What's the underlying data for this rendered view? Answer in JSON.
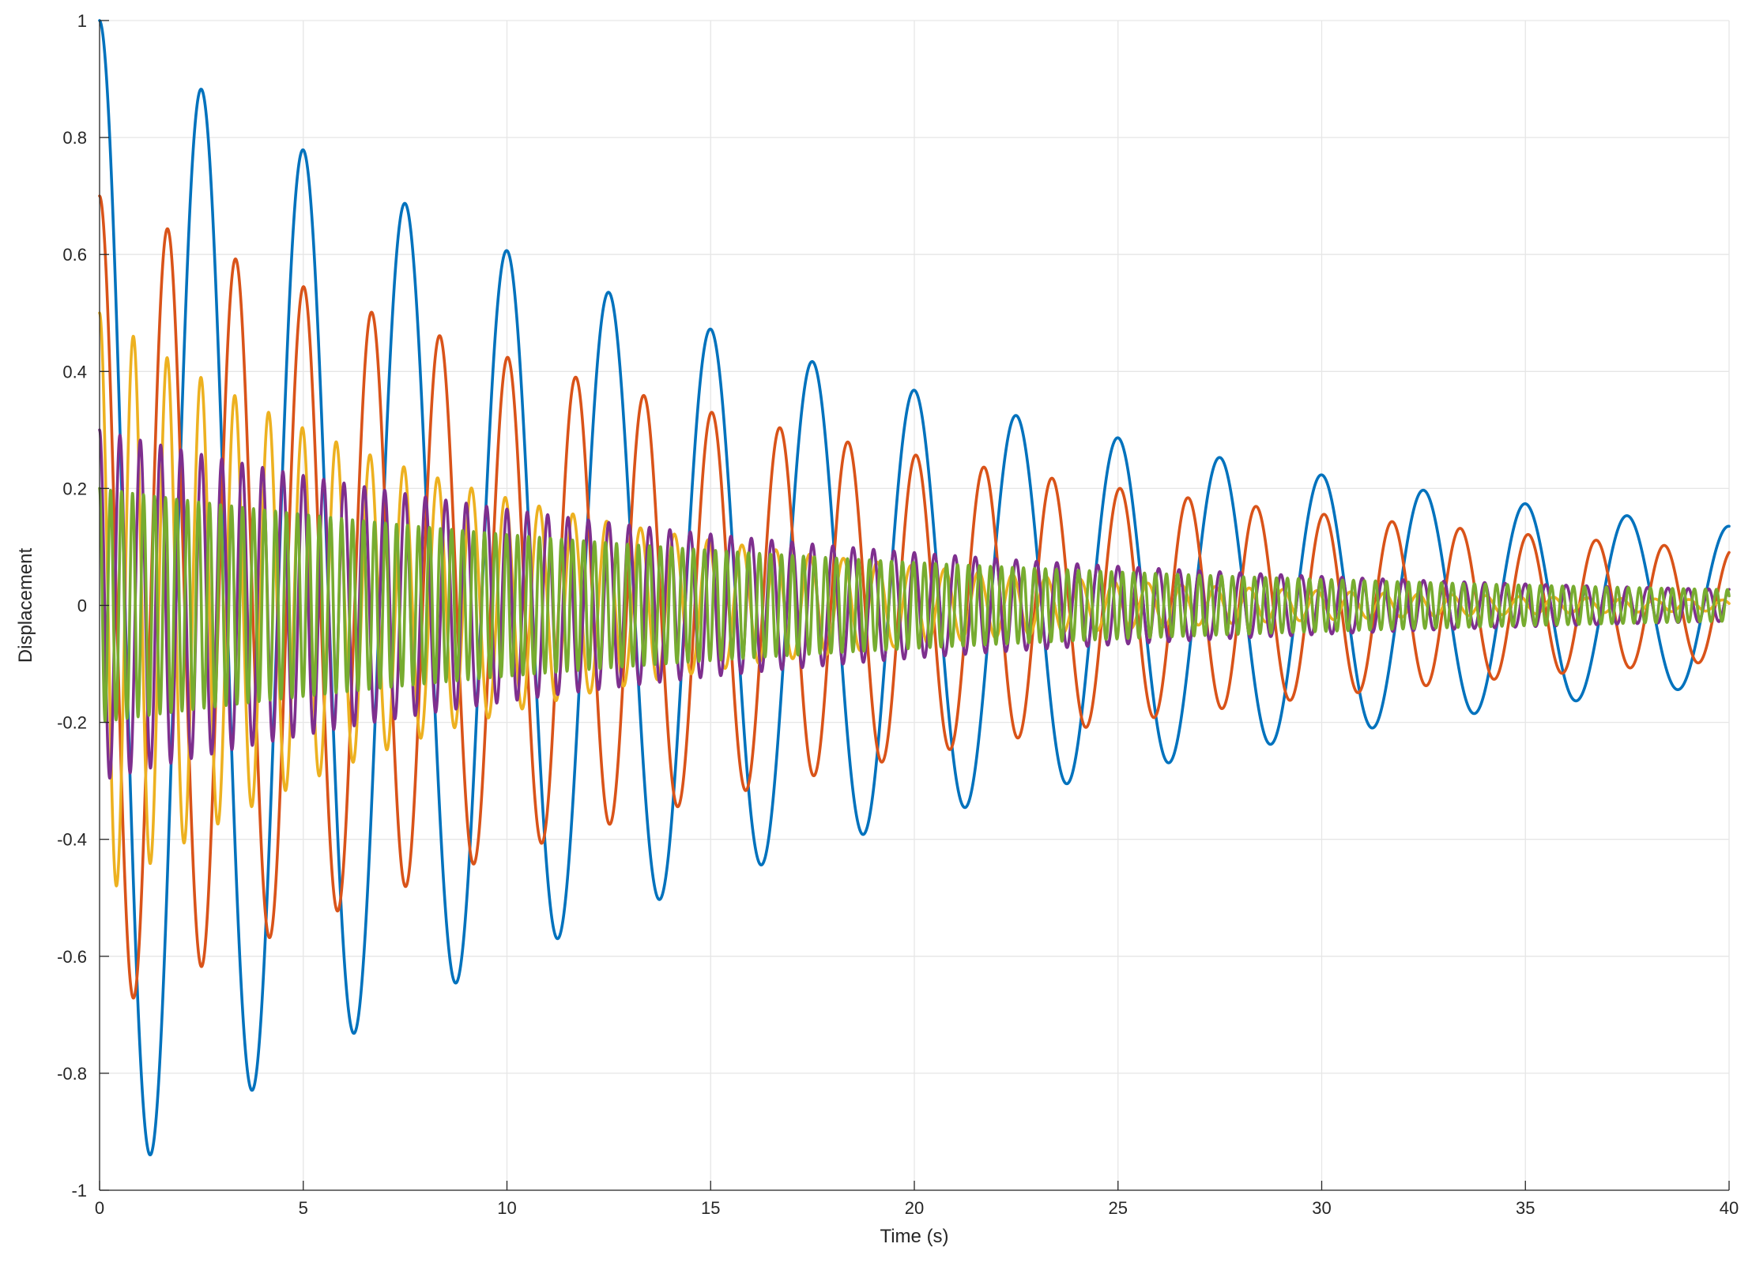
{
  "chart_data": {
    "type": "line",
    "title": "",
    "xlabel": "Time (s)",
    "ylabel": "Displacement",
    "xlim": [
      0,
      40
    ],
    "ylim": [
      -1,
      1
    ],
    "xticks": [
      0,
      5,
      10,
      15,
      20,
      25,
      30,
      35,
      40
    ],
    "yticks": [
      -1,
      -0.8,
      -0.6,
      -0.4,
      -0.2,
      0,
      0.2,
      0.4,
      0.6,
      0.8,
      1
    ],
    "xtick_labels": [
      "0",
      "5",
      "10",
      "15",
      "20",
      "25",
      "30",
      "35",
      "40"
    ],
    "ytick_labels": [
      "-1",
      "-0.8",
      "-0.6",
      "-0.4",
      "-0.2",
      "0",
      "0.2",
      "0.4",
      "0.6",
      "0.8",
      "1"
    ],
    "grid": true,
    "legend": "none",
    "series": [
      {
        "color": "#0072BD",
        "model": "damped_cosine",
        "amplitude": 1.0,
        "period_s": 2.5,
        "decay_per_s": 0.05
      },
      {
        "color": "#D95319",
        "model": "damped_cosine",
        "amplitude": 0.7,
        "period_s": 1.67,
        "decay_per_s": 0.05
      },
      {
        "color": "#EDB120",
        "model": "damped_cosine",
        "amplitude": 0.5,
        "period_s": 0.83,
        "decay_per_s": 0.1
      },
      {
        "color": "#7E2F8E",
        "model": "damped_cosine",
        "amplitude": 0.3,
        "period_s": 0.5,
        "decay_per_s": 0.06
      },
      {
        "color": "#77AC30",
        "model": "damped_cosine",
        "amplitude": 0.2,
        "period_s": 0.27,
        "decay_per_s": 0.05
      }
    ]
  }
}
